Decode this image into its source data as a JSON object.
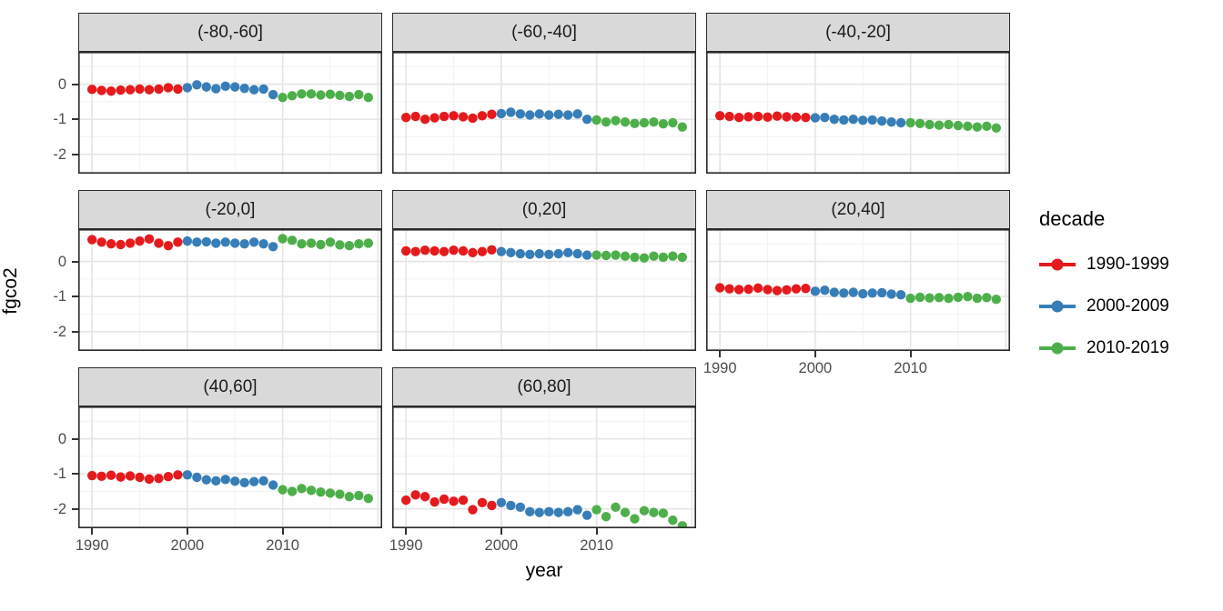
{
  "chart_data": {
    "type": "scatter",
    "title": "",
    "xlabel": "year",
    "ylabel": "fgco2",
    "facet_variable": "latitude band",
    "color_variable": "decade",
    "xlim": [
      1988.55,
      2020.45
    ],
    "ylim": [
      -2.55,
      0.92
    ],
    "xticks": [
      "1990",
      "2000",
      "2010"
    ],
    "yticks": [
      "0",
      "-1",
      "-2"
    ],
    "xtick_values": [
      1990,
      2000,
      2010
    ],
    "ytick_values": [
      0,
      -1,
      -2
    ],
    "x_grid_major": [
      1990,
      2000,
      2010,
      2020
    ],
    "x_grid_minor": [
      1995,
      2005,
      2015
    ],
    "y_grid_major": [
      0,
      -1,
      -2
    ],
    "y_grid_minor": [
      0.5,
      -0.5,
      -1.5,
      -2.5
    ],
    "grid": true,
    "legend_position": "right",
    "x": [
      1990,
      1991,
      1992,
      1993,
      1994,
      1995,
      1996,
      1997,
      1998,
      1999,
      2000,
      2001,
      2002,
      2003,
      2004,
      2005,
      2006,
      2007,
      2008,
      2009,
      2010,
      2011,
      2012,
      2013,
      2014,
      2015,
      2016,
      2017,
      2018,
      2019
    ],
    "series": [
      {
        "name": "1990-1999",
        "color": "#E41A1C",
        "year_from": 1990,
        "year_to": 1999
      },
      {
        "name": "2000-2009",
        "color": "#377EB8",
        "year_from": 2000,
        "year_to": 2009
      },
      {
        "name": "2010-2019",
        "color": "#4DAF4A",
        "year_from": 2010,
        "year_to": 2019
      }
    ],
    "facets": [
      {
        "label": "(-80,-60]",
        "values": [
          -0.15,
          -0.18,
          -0.2,
          -0.17,
          -0.16,
          -0.14,
          -0.16,
          -0.14,
          -0.1,
          -0.14,
          -0.1,
          -0.02,
          -0.08,
          -0.13,
          -0.06,
          -0.08,
          -0.12,
          -0.16,
          -0.14,
          -0.3,
          -0.38,
          -0.33,
          -0.28,
          -0.28,
          -0.31,
          -0.29,
          -0.32,
          -0.35,
          -0.3,
          -0.38
        ]
      },
      {
        "label": "(-60,-40]",
        "values": [
          -0.95,
          -0.92,
          -1.0,
          -0.96,
          -0.92,
          -0.9,
          -0.93,
          -0.97,
          -0.9,
          -0.86,
          -0.84,
          -0.8,
          -0.85,
          -0.88,
          -0.85,
          -0.88,
          -0.86,
          -0.88,
          -0.85,
          -1.0,
          -1.02,
          -1.08,
          -1.04,
          -1.08,
          -1.12,
          -1.1,
          -1.08,
          -1.13,
          -1.1,
          -1.22
        ]
      },
      {
        "label": "(-40,-20]",
        "values": [
          -0.9,
          -0.92,
          -0.95,
          -0.93,
          -0.92,
          -0.94,
          -0.91,
          -0.93,
          -0.94,
          -0.95,
          -0.96,
          -0.95,
          -1.0,
          -1.02,
          -1.0,
          -1.03,
          -1.02,
          -1.05,
          -1.08,
          -1.1,
          -1.1,
          -1.12,
          -1.15,
          -1.17,
          -1.15,
          -1.18,
          -1.2,
          -1.22,
          -1.2,
          -1.25
        ]
      },
      {
        "label": "(-20,0]",
        "values": [
          0.62,
          0.55,
          0.5,
          0.48,
          0.52,
          0.58,
          0.64,
          0.52,
          0.45,
          0.55,
          0.58,
          0.55,
          0.56,
          0.52,
          0.55,
          0.52,
          0.5,
          0.55,
          0.5,
          0.42,
          0.65,
          0.6,
          0.5,
          0.52,
          0.48,
          0.55,
          0.47,
          0.45,
          0.5,
          0.52
        ]
      },
      {
        "label": "(0,20]",
        "values": [
          0.3,
          0.28,
          0.32,
          0.3,
          0.28,
          0.32,
          0.3,
          0.25,
          0.28,
          0.33,
          0.28,
          0.25,
          0.22,
          0.2,
          0.22,
          0.2,
          0.22,
          0.25,
          0.22,
          0.18,
          0.18,
          0.17,
          0.18,
          0.15,
          0.12,
          0.1,
          0.15,
          0.12,
          0.15,
          0.12
        ]
      },
      {
        "label": "(20,40]",
        "values": [
          -0.75,
          -0.78,
          -0.8,
          -0.79,
          -0.76,
          -0.8,
          -0.83,
          -0.81,
          -0.78,
          -0.77,
          -0.85,
          -0.82,
          -0.88,
          -0.9,
          -0.88,
          -0.92,
          -0.9,
          -0.89,
          -0.93,
          -0.95,
          -1.05,
          -1.02,
          -1.04,
          -1.03,
          -1.05,
          -1.02,
          -1.0,
          -1.05,
          -1.03,
          -1.08
        ]
      },
      {
        "label": "(40,60]",
        "values": [
          -1.05,
          -1.07,
          -1.04,
          -1.09,
          -1.06,
          -1.1,
          -1.15,
          -1.13,
          -1.08,
          -1.03,
          -1.03,
          -1.1,
          -1.17,
          -1.2,
          -1.16,
          -1.21,
          -1.25,
          -1.22,
          -1.2,
          -1.32,
          -1.45,
          -1.5,
          -1.42,
          -1.47,
          -1.52,
          -1.55,
          -1.58,
          -1.65,
          -1.62,
          -1.7
        ]
      },
      {
        "label": "(60,80]",
        "values": [
          -1.75,
          -1.6,
          -1.65,
          -1.8,
          -1.72,
          -1.78,
          -1.75,
          -2.02,
          -1.82,
          -1.9,
          -1.82,
          -1.9,
          -1.95,
          -2.08,
          -2.1,
          -2.08,
          -2.1,
          -2.08,
          -2.02,
          -2.18,
          -2.02,
          -2.22,
          -1.95,
          -2.1,
          -2.28,
          -2.05,
          -2.1,
          -2.12,
          -2.32,
          -2.48
        ]
      }
    ]
  },
  "legend": {
    "title": "decade",
    "entries": [
      {
        "label": "1990-1999",
        "color": "#E41A1C"
      },
      {
        "label": "2000-2009",
        "color": "#377EB8"
      },
      {
        "label": "2010-2019",
        "color": "#4DAF4A"
      }
    ]
  },
  "theme": {
    "strip_background": "#d9d9d9",
    "panel_border": "#2b2b2b",
    "grid_major_color": "#e5e5e5",
    "grid_minor_color": "#f2f2f2",
    "tick_label_color": "#4d4d4d",
    "point_radius": 5.2
  }
}
